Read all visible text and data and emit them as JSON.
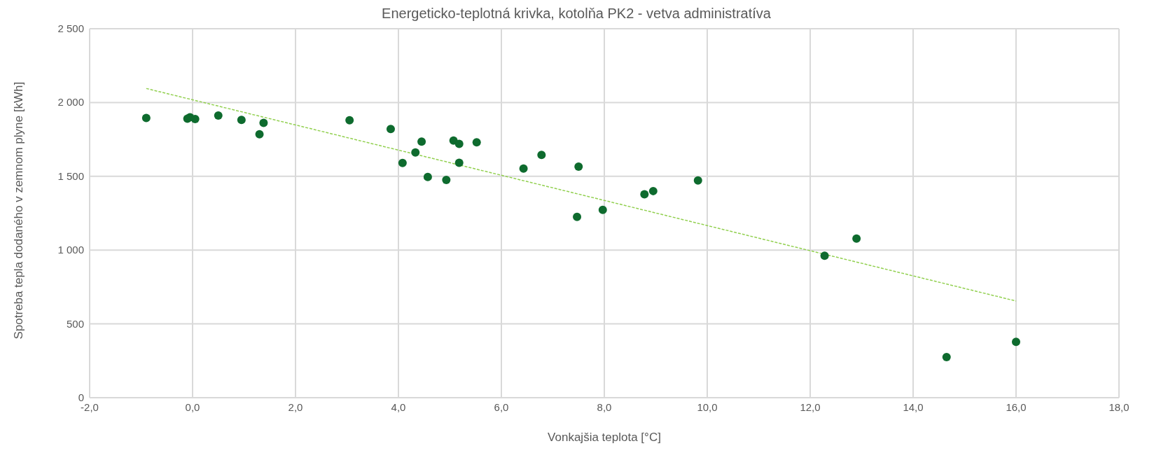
{
  "chart_data": {
    "type": "scatter",
    "title": "Energeticko-teplotná krivka, kotolňa PK2 - vetva administratíva",
    "xlabel": "Vonkajšia teplota [°C]",
    "ylabel": "Spotreba tepla dodaného v zemnom plyne [kWh]",
    "xlim": [
      -2,
      18
    ],
    "xticks": [
      {
        "value": -2,
        "label": "-2,0"
      },
      {
        "value": 0,
        "label": "0,0"
      },
      {
        "value": 2,
        "label": "2,0"
      },
      {
        "value": 4,
        "label": "4,0"
      },
      {
        "value": 6,
        "label": "6,0"
      },
      {
        "value": 8,
        "label": "8,0"
      },
      {
        "value": 10,
        "label": "10,0"
      },
      {
        "value": 12,
        "label": "12,0"
      },
      {
        "value": 14,
        "label": "14,0"
      },
      {
        "value": 16,
        "label": "16,0"
      },
      {
        "value": 18,
        "label": "18,0"
      }
    ],
    "ylim": [
      0,
      2500
    ],
    "yticks": [
      0,
      500,
      {
        "value": 1000,
        "label": "1 000"
      },
      {
        "value": 1500,
        "label": "1 500"
      },
      {
        "value": 2000,
        "label": "2 000"
      },
      {
        "value": 2500,
        "label": "2 500"
      }
    ],
    "grid": true,
    "marker": "circle",
    "series": [
      {
        "type": "scatter",
        "color": "#0e6b2e",
        "x": [
          -0.9,
          -0.1,
          -0.05,
          0.05,
          0.5,
          0.95,
          1.3,
          1.38,
          3.05,
          3.85,
          4.08,
          4.33,
          4.45,
          4.57,
          4.93,
          5.07,
          5.18,
          5.18,
          5.52,
          6.43,
          6.78,
          7.47,
          7.5,
          7.97,
          8.78,
          8.95,
          9.82,
          12.28,
          12.9,
          14.65,
          16.0
        ],
        "values": [
          1895,
          1890,
          1900,
          1888,
          1912,
          1882,
          1785,
          1862,
          1880,
          1820,
          1590,
          1662,
          1735,
          1495,
          1475,
          1742,
          1720,
          1592,
          1730,
          1552,
          1645,
          1225,
          1565,
          1272,
          1378,
          1400,
          1472,
          962,
          1078,
          275,
          378
        ]
      },
      {
        "type": "line",
        "color": "#92d050",
        "line_style": "dashed",
        "marker": "none",
        "x": [
          -0.9,
          16.0
        ],
        "values": [
          2095,
          655
        ]
      }
    ]
  }
}
